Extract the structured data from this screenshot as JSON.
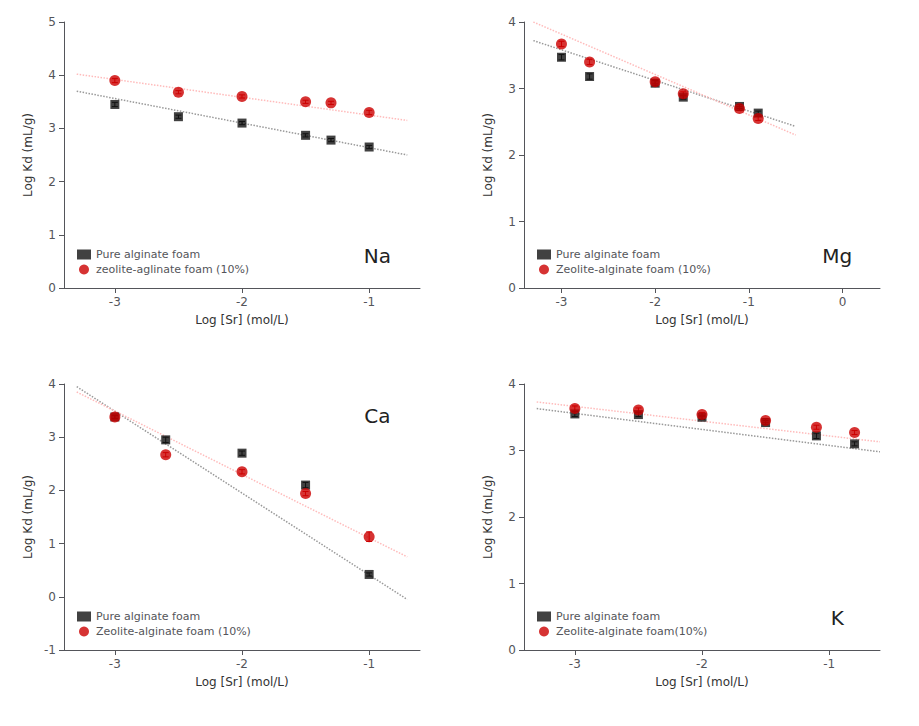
{
  "chart_data": [
    {
      "type": "scatter",
      "annotation": "Na",
      "x_label": "Log [Sr] (mol/L)",
      "y_label": "Log Kd (mL/g)",
      "xlim": [
        -3.4,
        -0.6
      ],
      "xticks": [
        -3,
        -2,
        -1
      ],
      "ylim": [
        0,
        5
      ],
      "yticks": [
        0,
        1,
        2,
        3,
        4,
        5
      ],
      "grid": false,
      "legend": "lower left",
      "series": [
        {
          "type": "line",
          "line_style": "dotted",
          "color": "#999999",
          "x": [
            -3.3,
            -0.7
          ],
          "values": [
            3.7,
            2.5
          ]
        },
        {
          "type": "line",
          "line_style": "dotted",
          "color": "#ffbbbb",
          "x": [
            -3.3,
            -0.7
          ],
          "values": [
            4.02,
            3.15
          ]
        },
        {
          "name": "Pure alginate foam",
          "type": "scatter",
          "marker": "square",
          "color": "#111111",
          "x": [
            -3.0,
            -2.5,
            -2.0,
            -1.5,
            -1.3,
            -1.0
          ],
          "values": [
            3.45,
            3.22,
            3.1,
            2.87,
            2.78,
            2.65
          ],
          "yerr": [
            0.04,
            0.03,
            0.03,
            0.03,
            0.03,
            0.03
          ]
        },
        {
          "name": "zeolite-aglinate foam (10%)",
          "type": "scatter",
          "marker": "circle",
          "color": "#cc0000",
          "x": [
            -3.0,
            -2.5,
            -2.0,
            -1.5,
            -1.3,
            -1.0
          ],
          "values": [
            3.9,
            3.68,
            3.6,
            3.5,
            3.48,
            3.3
          ],
          "yerr": [
            0.04,
            0.03,
            0.03,
            0.03,
            0.03,
            0.04
          ]
        }
      ]
    },
    {
      "type": "scatter",
      "annotation": "Mg",
      "x_label": "Log [Sr] (mol/L)",
      "y_label": "Log Kd (mL/g)",
      "xlim": [
        -3.4,
        0.4
      ],
      "xticks": [
        -3,
        -2,
        -1,
        0
      ],
      "ylim": [
        0,
        4
      ],
      "yticks": [
        0,
        1,
        2,
        3,
        4
      ],
      "grid": false,
      "legend": "lower left",
      "series": [
        {
          "type": "line",
          "line_style": "dotted",
          "color": "#999999",
          "x": [
            -3.3,
            -0.5
          ],
          "values": [
            3.72,
            2.43
          ]
        },
        {
          "type": "line",
          "line_style": "dotted",
          "color": "#ffbbbb",
          "x": [
            -3.3,
            -0.5
          ],
          "values": [
            4.0,
            2.3
          ]
        },
        {
          "name": "Pure alginate foam",
          "type": "scatter",
          "marker": "square",
          "color": "#111111",
          "x": [
            -3.0,
            -2.7,
            -2.0,
            -1.7,
            -1.1,
            -0.9
          ],
          "values": [
            3.47,
            3.18,
            3.08,
            2.87,
            2.73,
            2.63
          ],
          "yerr": [
            0.04,
            0.04,
            0.04,
            0.03,
            0.03,
            0.03
          ]
        },
        {
          "name": "Zeolite-alginate foam (10%)",
          "type": "scatter",
          "marker": "circle",
          "color": "#cc0000",
          "x": [
            -3.0,
            -2.7,
            -2.0,
            -1.7,
            -1.1,
            -0.9
          ],
          "values": [
            3.67,
            3.4,
            3.1,
            2.92,
            2.7,
            2.55
          ],
          "yerr": [
            0.04,
            0.04,
            0.03,
            0.03,
            0.03,
            0.03
          ]
        }
      ]
    },
    {
      "type": "scatter",
      "annotation": "Ca",
      "x_label": "Log [Sr] (mol/L)",
      "y_label": "Log Kd (mL/g)",
      "xlim": [
        -3.4,
        -0.6
      ],
      "xticks": [
        -3,
        -2,
        -1
      ],
      "ylim": [
        -1,
        4
      ],
      "yticks": [
        -1,
        0,
        1,
        2,
        3,
        4
      ],
      "grid": false,
      "legend": "lower left",
      "series": [
        {
          "type": "line",
          "line_style": "dotted",
          "color": "#999999",
          "x": [
            -3.3,
            -0.7
          ],
          "values": [
            3.95,
            -0.05
          ]
        },
        {
          "type": "line",
          "line_style": "dotted",
          "color": "#ffbbbb",
          "x": [
            -3.3,
            -0.7
          ],
          "values": [
            3.85,
            0.75
          ]
        },
        {
          "name": "Pure alginate foam",
          "type": "scatter",
          "marker": "square",
          "color": "#111111",
          "x": [
            -3.0,
            -2.6,
            -2.0,
            -1.5,
            -1.0
          ],
          "values": [
            3.38,
            2.95,
            2.7,
            2.1,
            0.42
          ],
          "yerr": [
            0.03,
            0.05,
            0.04,
            0.05,
            0.03
          ]
        },
        {
          "name": "Zeolite-alginate foam (10%)",
          "type": "scatter",
          "marker": "circle",
          "color": "#cc0000",
          "x": [
            -3.0,
            -2.6,
            -2.0,
            -1.5,
            -1.0
          ],
          "values": [
            3.38,
            2.67,
            2.35,
            1.94,
            1.13
          ],
          "yerr": [
            0.03,
            0.04,
            0.04,
            0.04,
            0.09
          ]
        }
      ]
    },
    {
      "type": "scatter",
      "annotation": "K",
      "x_label": "Log [Sr] (mol/L)",
      "y_label": "Log Kd (mL/g)",
      "xlim": [
        -3.4,
        -0.6
      ],
      "xticks": [
        -3,
        -2,
        -1
      ],
      "ylim": [
        0,
        4
      ],
      "yticks": [
        0,
        1,
        2,
        3,
        4
      ],
      "grid": false,
      "legend": "lower left",
      "series": [
        {
          "type": "line",
          "line_style": "dotted",
          "color": "#999999",
          "x": [
            -3.3,
            -0.6
          ],
          "values": [
            3.63,
            2.98
          ]
        },
        {
          "type": "line",
          "line_style": "dotted",
          "color": "#ffbbbb",
          "x": [
            -3.3,
            -0.6
          ],
          "values": [
            3.73,
            3.13
          ]
        },
        {
          "name": "Pure alginate foam",
          "type": "scatter",
          "marker": "square",
          "color": "#111111",
          "x": [
            -3.0,
            -2.5,
            -2.0,
            -1.5,
            -1.1,
            -0.8
          ],
          "values": [
            3.55,
            3.54,
            3.5,
            3.42,
            3.22,
            3.1
          ],
          "yerr": [
            0.04,
            0.03,
            0.03,
            0.03,
            0.04,
            0.03
          ]
        },
        {
          "name": "Zeolite-alginate foam(10%)",
          "type": "scatter",
          "marker": "circle",
          "color": "#cc0000",
          "x": [
            -3.0,
            -2.5,
            -2.0,
            -1.5,
            -1.1,
            -0.8
          ],
          "values": [
            3.63,
            3.61,
            3.54,
            3.45,
            3.35,
            3.27
          ],
          "yerr": [
            0.04,
            0.03,
            0.03,
            0.03,
            0.03,
            0.03
          ]
        }
      ]
    }
  ]
}
